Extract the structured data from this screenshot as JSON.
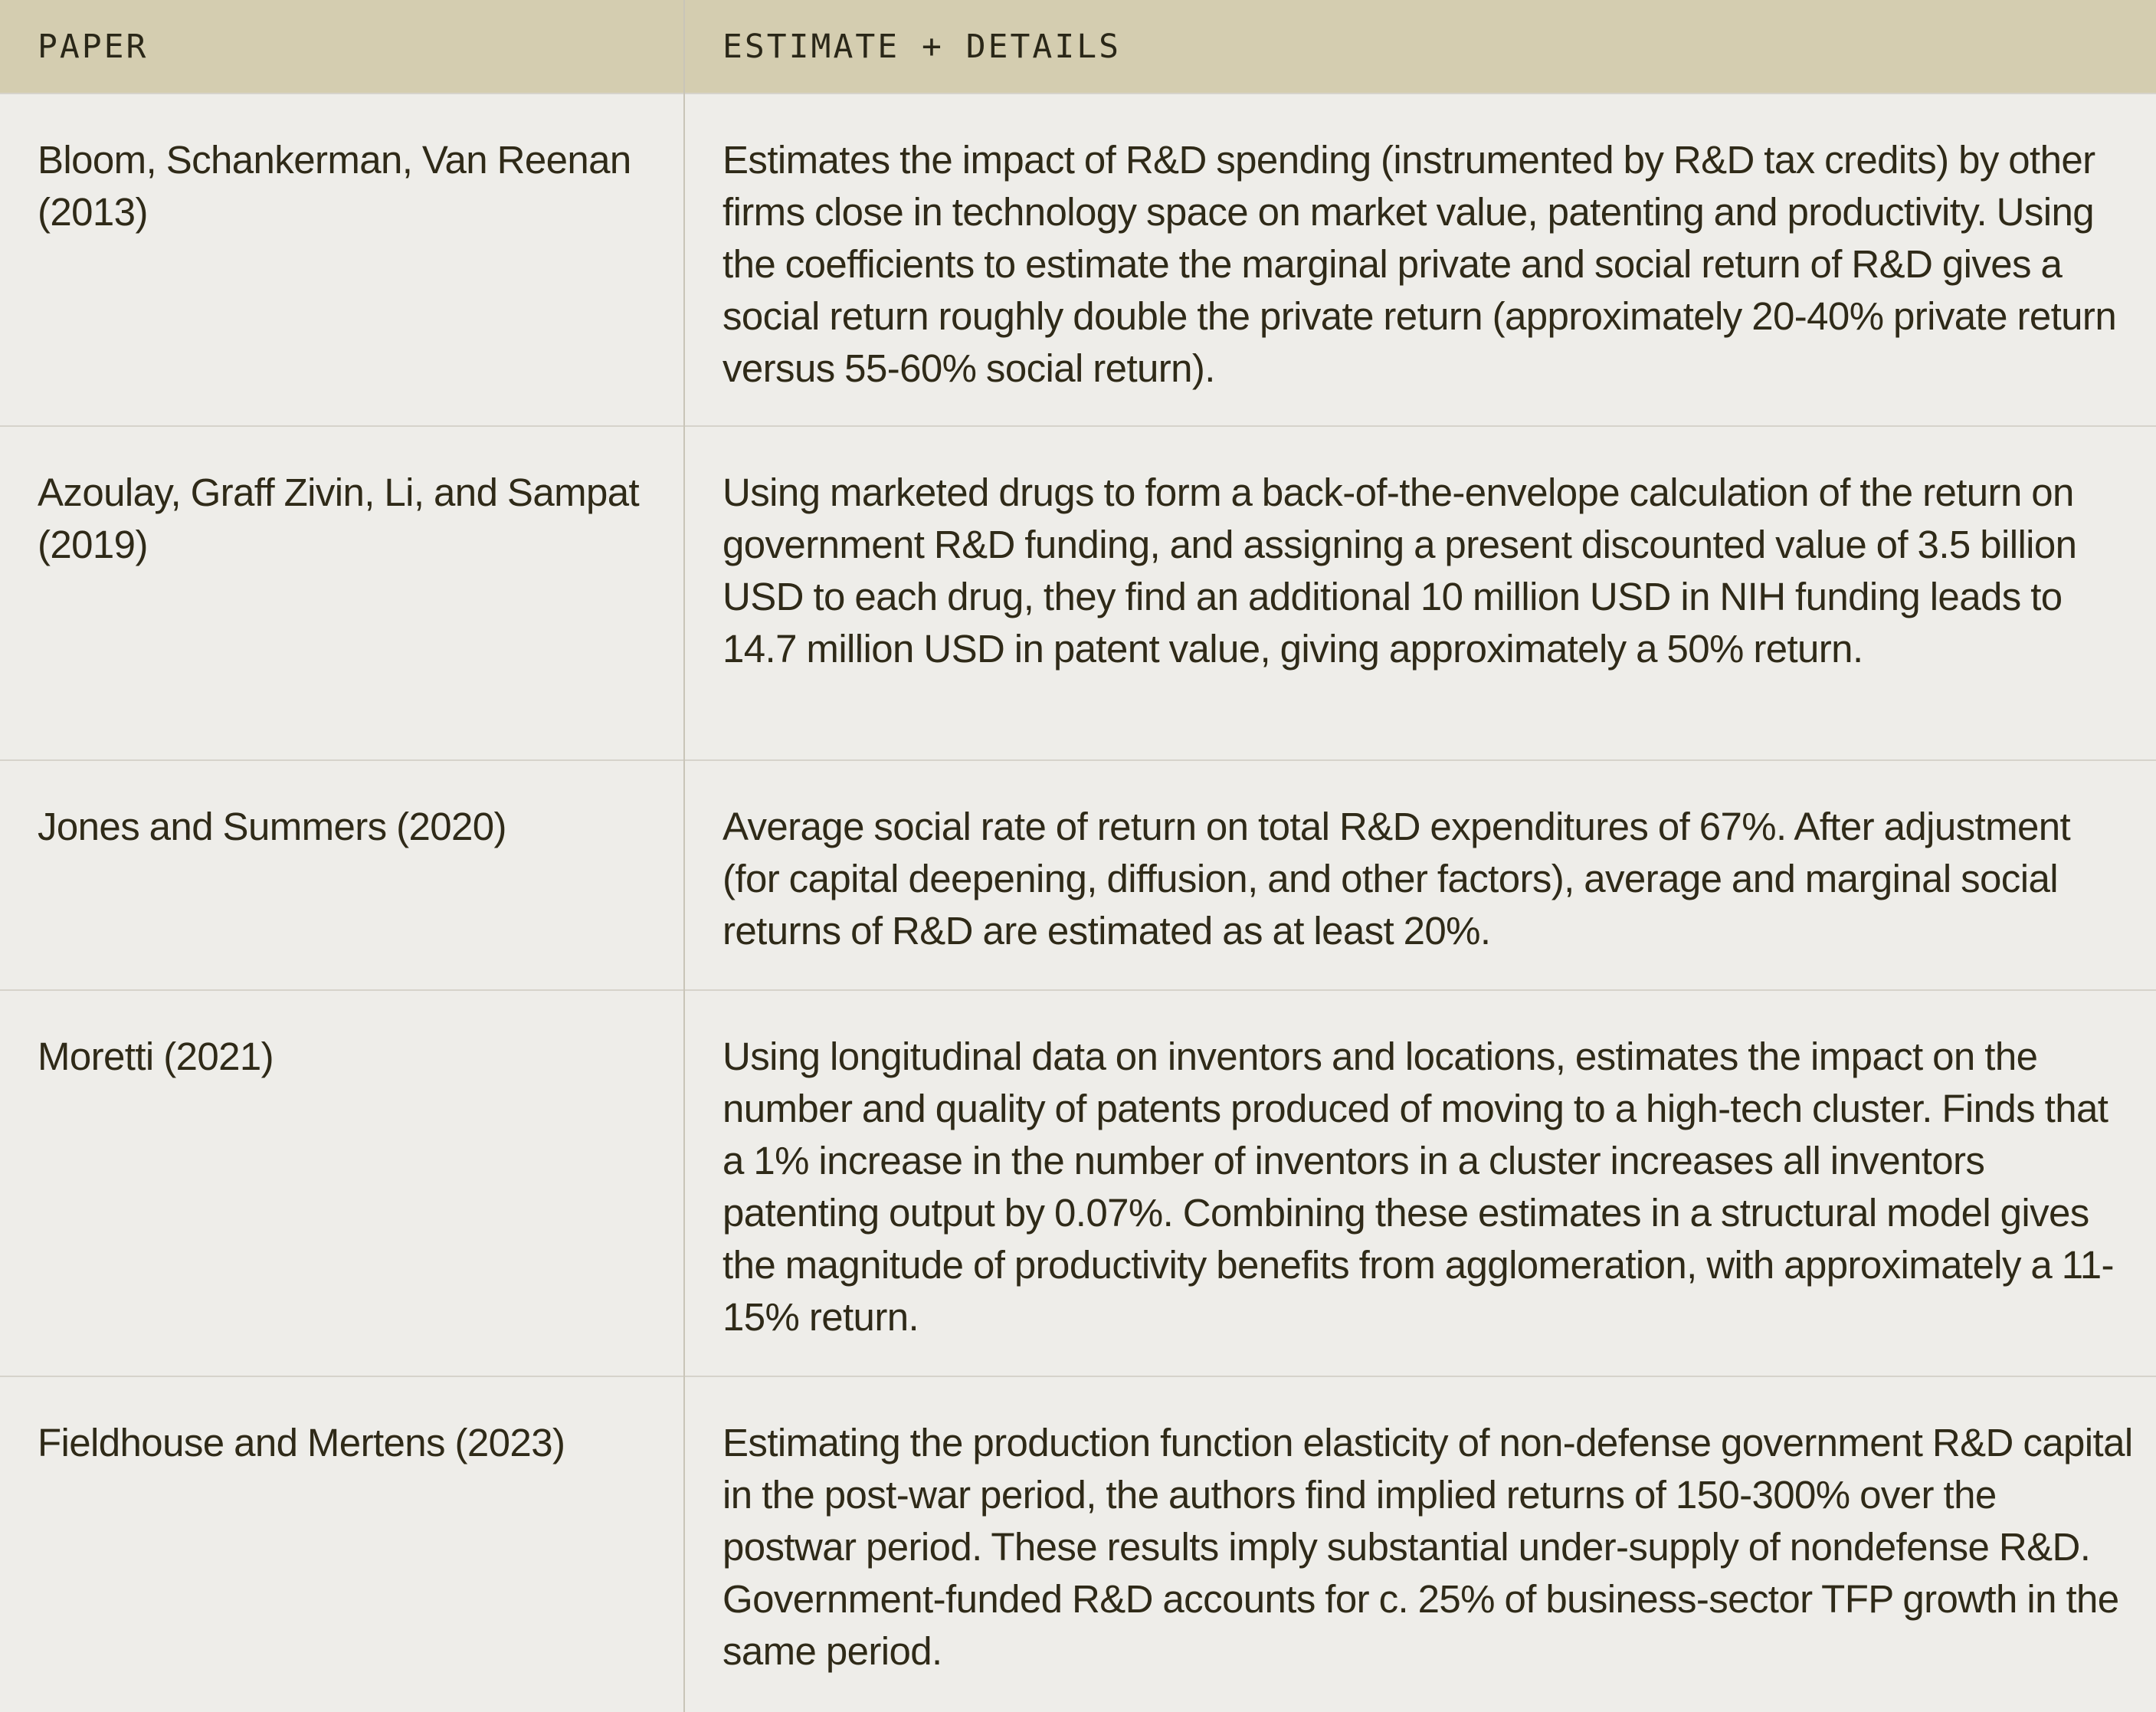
{
  "header": {
    "col_paper": "PAPER",
    "col_details": "ESTIMATE + DETAILS"
  },
  "rows": [
    {
      "paper": "Bloom, Schankerman, Van Reenan (2013)",
      "details": "Estimates the impact of R&D spending (instrumented by R&D tax credits) by other firms close in technology space on market value, patenting and productivity. Using the coefficients to estimate the marginal private and social return of R&D gives a social return roughly double the private return (approximately 20-40% private return versus 55-60% social return)."
    },
    {
      "paper": "Azoulay, Graff Zivin, Li, and Sampat (2019)",
      "details": "Using marketed drugs to form a back-of-the-envelope calculation of the return on government R&D funding, and assigning a present discounted value of 3.5 billion USD to each drug, they find an additional 10 million USD in NIH funding leads to 14.7 million USD in patent value, giving approximately a 50% return."
    },
    {
      "paper": "Jones and Summers (2020)",
      "details": "Average social rate of return on total R&D expenditures of 67%. After adjustment (for capital deepening, diffusion, and other factors), average and marginal social returns of R&D are estimated as at least 20%."
    },
    {
      "paper": "Moretti (2021)",
      "details": "Using longitudinal data on inventors and locations, estimates the impact on the number and quality of patents produced of moving to a high-tech cluster. Finds that a 1% increase in the number of inventors in a cluster increases all inventors patenting output by 0.07%. Combining these estimates in a structural model gives the magnitude of productivity benefits from agglomeration, with approximately a 11-15% return."
    },
    {
      "paper": "Fieldhouse and Mertens (2023)",
      "details": "Estimating the production function elasticity of non-defense government R&D capital in the post-war period, the authors find implied returns of 150-300% over the postwar period. These results imply substantial under-supply of nondefense R&D. Government-funded R&D accounts for c. 25% of business-sector TFP growth in the same period."
    }
  ],
  "colors": {
    "header_bg": "#d4cdb0",
    "body_bg": "#eeede9",
    "text": "#2f2a18",
    "rule": "#d6d3cb"
  }
}
